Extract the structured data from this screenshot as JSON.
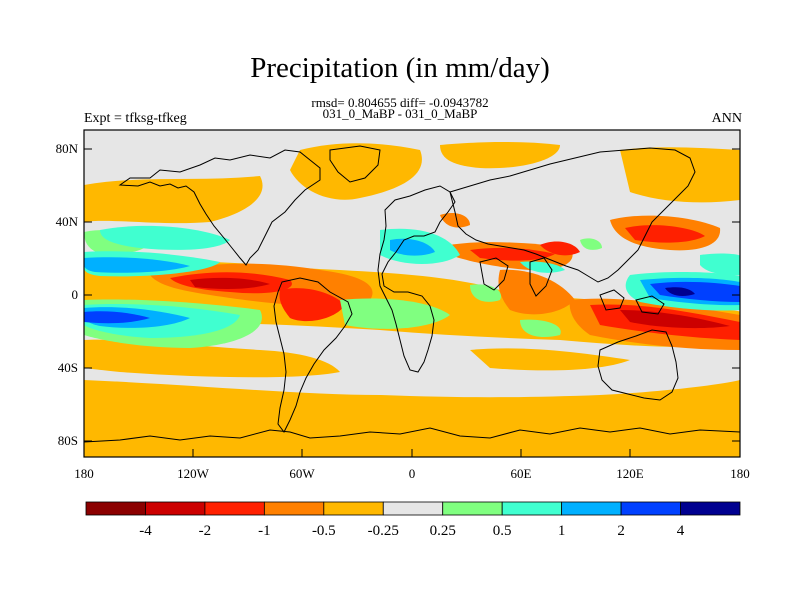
{
  "title": "Precipitation (in mm/day)",
  "subtitle_stats": "rmsd= 0.804655 diff= -0.0943782",
  "subtitle_runs": "031_0_MaBP - 031_0_MaBP",
  "left_label": "Expt = tfksg-tfkeg",
  "right_label": "ANN",
  "lat_ticks": [
    "80N",
    "40N",
    "0",
    "40S",
    "80S"
  ],
  "lon_ticks": [
    "180",
    "120W",
    "60W",
    "0",
    "60E",
    "120E",
    "180"
  ],
  "colorbar": {
    "colors": [
      "#8b0000",
      "#cc0000",
      "#ff2000",
      "#ff8000",
      "#ffb800",
      "#e6e6e6",
      "#80ff80",
      "#40ffd0",
      "#00b0ff",
      "#0040ff",
      "#000090"
    ],
    "labels": [
      "-4",
      "-2",
      "-1",
      "-0.5",
      "-0.25",
      "0.25",
      "0.5",
      "1",
      "2",
      "4"
    ]
  },
  "colors": {
    "background_field": "#e6e6e6",
    "coast": "#000000"
  }
}
